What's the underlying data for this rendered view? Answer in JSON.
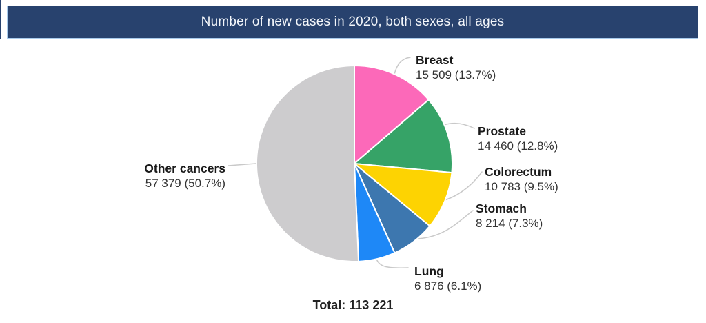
{
  "header": {
    "title": "Number of new cases in 2020, both sexes, all ages",
    "bg_color": "#28426E",
    "text_color": "#F4F7FB"
  },
  "chart_data": {
    "type": "pie",
    "title": "Number of new cases in 2020, both sexes, all ages",
    "direction": "clockwise",
    "start_angle_deg": 0,
    "total_value": 113221,
    "total_label": "Total: 113 221",
    "slice_stroke_color": "#ffffff",
    "leader_line_color": "#c9c9c9",
    "slices": [
      {
        "label": "Breast",
        "value": 15509,
        "pct": 13.7,
        "display_value": "15 509 (13.7%)",
        "color": "#FC69B9"
      },
      {
        "label": "Prostate",
        "value": 14460,
        "pct": 12.8,
        "display_value": "14 460 (12.8%)",
        "color": "#36A367"
      },
      {
        "label": "Colorectum",
        "value": 10783,
        "pct": 9.5,
        "display_value": "10 783 (9.5%)",
        "color": "#FDD302"
      },
      {
        "label": "Stomach",
        "value": 8214,
        "pct": 7.3,
        "display_value": "8 214 (7.3%)",
        "color": "#3D77AF"
      },
      {
        "label": "Lung",
        "value": 6876,
        "pct": 6.1,
        "display_value": "6 876 (6.1%)",
        "color": "#1E88F7"
      },
      {
        "label": "Other cancers",
        "value": 57379,
        "pct": 50.7,
        "display_value": "57 379 (50.7%)",
        "color": "#CDCCCE"
      }
    ]
  }
}
